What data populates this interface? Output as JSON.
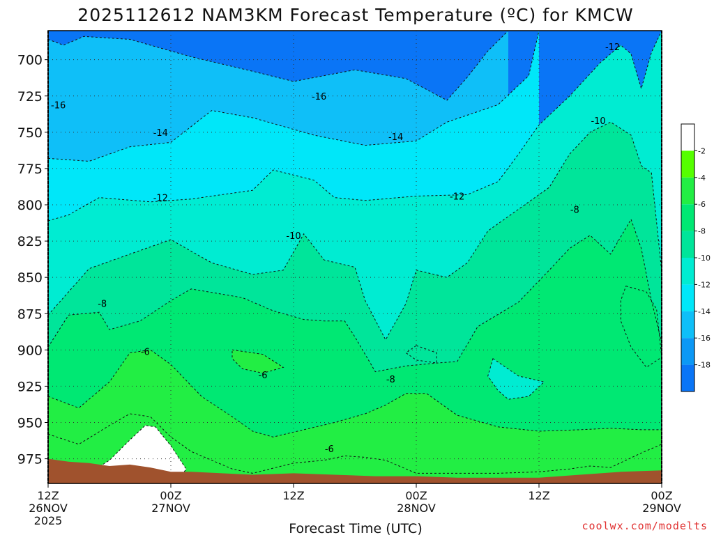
{
  "chart_data": {
    "type": "heatmap",
    "title": "2025112612 NAM3KM Forecast Temperature (ºC) for KMCW",
    "xlabel": "Forecast Time (UTC)",
    "ylabel": "",
    "credit": "coolwx.com/modelts",
    "units": "ºC",
    "x_hours": [
      0,
      12,
      24,
      36,
      48,
      60
    ],
    "x_tick_lines": [
      [
        "12Z",
        "26NOV",
        "2025"
      ],
      [
        "00Z",
        "27NOV"
      ],
      [
        "12Z"
      ],
      [
        "00Z",
        "28NOV"
      ],
      [
        "12Z"
      ],
      [
        "00Z",
        "29NOV"
      ]
    ],
    "xlim": [
      0,
      60
    ],
    "y_levels_hPa": [
      700,
      725,
      750,
      775,
      800,
      825,
      850,
      875,
      900,
      925,
      950,
      975
    ],
    "ylim": [
      680,
      992
    ],
    "colorbar_levels": [
      -2,
      -4,
      -6,
      -8,
      -10,
      -12,
      -14,
      -16,
      -18
    ],
    "colorbar_bands": [
      {
        "range": "> -2",
        "color": "#ffffff"
      },
      {
        "range": "-4 to -2",
        "color": "#55ff00"
      },
      {
        "range": "-6 to -4",
        "color": "#22ee44"
      },
      {
        "range": "-8 to -6",
        "color": "#00e873"
      },
      {
        "range": "-10 to -8",
        "color": "#00e59a"
      },
      {
        "range": "-12 to -10",
        "color": "#00ecd2"
      },
      {
        "range": "-14 to -12",
        "color": "#00e7f9"
      },
      {
        "range": "-16 to -14",
        "color": "#0fbff8"
      },
      {
        "range": "-18 to -16",
        "color": "#0c98f5"
      },
      {
        "range": "< -18",
        "color": "#0a75f6"
      }
    ],
    "contours": [
      {
        "level": -16,
        "points": [
          [
            0,
            686
          ],
          [
            1.5,
            690
          ],
          [
            3.5,
            684
          ],
          [
            8,
            686
          ],
          [
            14,
            698
          ],
          [
            20,
            708
          ],
          [
            24,
            715
          ],
          [
            30,
            707
          ],
          [
            35,
            713
          ],
          [
            39,
            728
          ],
          [
            41,
            712
          ],
          [
            43,
            694
          ],
          [
            45,
            680
          ]
        ]
      },
      {
        "level": -14,
        "points": [
          [
            0,
            768
          ],
          [
            4,
            770
          ],
          [
            8,
            760
          ],
          [
            12,
            757
          ],
          [
            16,
            735
          ],
          [
            20,
            740
          ],
          [
            26,
            752
          ],
          [
            31,
            759
          ],
          [
            36,
            756
          ],
          [
            39,
            743
          ],
          [
            44,
            731
          ],
          [
            47,
            711
          ],
          [
            48,
            680
          ]
        ]
      },
      {
        "level": -12,
        "points": [
          [
            0,
            811
          ],
          [
            2,
            807
          ],
          [
            5,
            795
          ],
          [
            10,
            798
          ],
          [
            14,
            796
          ],
          [
            20,
            790
          ],
          [
            22,
            776
          ],
          [
            26,
            783
          ],
          [
            28,
            795
          ],
          [
            31,
            797
          ],
          [
            36,
            794
          ],
          [
            41,
            793
          ],
          [
            44,
            784
          ],
          [
            46,
            765
          ],
          [
            48,
            745
          ],
          [
            51,
            725
          ],
          [
            54,
            702
          ],
          [
            56,
            690
          ],
          [
            57,
            696
          ],
          [
            58,
            720
          ],
          [
            59,
            695
          ],
          [
            60,
            680
          ]
        ]
      },
      {
        "level": -10,
        "points": [
          [
            0,
            876
          ],
          [
            2,
            860
          ],
          [
            4,
            844
          ],
          [
            8,
            834
          ],
          [
            12,
            824
          ],
          [
            16,
            840
          ],
          [
            20,
            848
          ],
          [
            23,
            845
          ],
          [
            25,
            820
          ],
          [
            27,
            838
          ],
          [
            30,
            843
          ],
          [
            31,
            866
          ],
          [
            33,
            893
          ],
          [
            35,
            868
          ],
          [
            36,
            845
          ],
          [
            39,
            850
          ],
          [
            41,
            840
          ],
          [
            43,
            818
          ],
          [
            46,
            803
          ],
          [
            49,
            788
          ],
          [
            51,
            765
          ],
          [
            53,
            750
          ],
          [
            55,
            743
          ],
          [
            57,
            752
          ],
          [
            58,
            773
          ],
          [
            59,
            778
          ],
          [
            60,
            846
          ]
        ]
      },
      {
        "level": -8,
        "points": [
          [
            0,
            898
          ],
          [
            2,
            876
          ],
          [
            5,
            874
          ],
          [
            6,
            886
          ],
          [
            9,
            880
          ],
          [
            12,
            866
          ],
          [
            14,
            858
          ],
          [
            19,
            864
          ],
          [
            22,
            873
          ],
          [
            25,
            879
          ],
          [
            27,
            880
          ],
          [
            29,
            880
          ],
          [
            30,
            891
          ],
          [
            31,
            903
          ],
          [
            32,
            915
          ],
          [
            35,
            911
          ],
          [
            38,
            909
          ],
          [
            40,
            908
          ],
          [
            42,
            884
          ],
          [
            46,
            867
          ],
          [
            49,
            845
          ],
          [
            51,
            830
          ],
          [
            53,
            821
          ],
          [
            55,
            834
          ],
          [
            57,
            810
          ],
          [
            58,
            830
          ],
          [
            59,
            866
          ],
          [
            60,
            895
          ]
        ]
      },
      {
        "level": -6,
        "points": [
          [
            0,
            932
          ],
          [
            3,
            940
          ],
          [
            6,
            922
          ],
          [
            8,
            902
          ],
          [
            10,
            900
          ],
          [
            12,
            910
          ],
          [
            15,
            932
          ],
          [
            18,
            946
          ],
          [
            20,
            956
          ],
          [
            22,
            960
          ],
          [
            25,
            955
          ],
          [
            28,
            950
          ],
          [
            31,
            944
          ],
          [
            33,
            938
          ],
          [
            35,
            930
          ],
          [
            37,
            930
          ],
          [
            40,
            945
          ],
          [
            44,
            953
          ],
          [
            48,
            956
          ],
          [
            52,
            955
          ],
          [
            55,
            954
          ],
          [
            58,
            955
          ],
          [
            60,
            955
          ]
        ]
      },
      {
        "level": -4,
        "points": [
          [
            0,
            958
          ],
          [
            3,
            965
          ],
          [
            6,
            952
          ],
          [
            8,
            944
          ],
          [
            10,
            946
          ],
          [
            12,
            960
          ],
          [
            14,
            970
          ],
          [
            16,
            976
          ],
          [
            18,
            982
          ],
          [
            20,
            985
          ],
          [
            24,
            978
          ],
          [
            27,
            976
          ],
          [
            29,
            973
          ],
          [
            31,
            974
          ],
          [
            32,
            975
          ],
          [
            33,
            976
          ],
          [
            36,
            985
          ],
          [
            40,
            985
          ],
          [
            44,
            985
          ],
          [
            48,
            984
          ],
          [
            51,
            982
          ],
          [
            53,
            980
          ],
          [
            55,
            981
          ],
          [
            58,
            971
          ],
          [
            60,
            965
          ]
        ]
      }
    ],
    "contour_labels": [
      {
        "text": "-16",
        "t": 1.0,
        "p": 731
      },
      {
        "text": "-16",
        "t": 26.5,
        "p": 725
      },
      {
        "text": "-12",
        "t": 55.2,
        "p": 691
      },
      {
        "text": "-14",
        "t": 11.0,
        "p": 750
      },
      {
        "text": "-14",
        "t": 34.0,
        "p": 753
      },
      {
        "text": "-10",
        "t": 53.8,
        "p": 742
      },
      {
        "text": "-12",
        "t": 11.0,
        "p": 795
      },
      {
        "text": "-12",
        "t": 40.0,
        "p": 794
      },
      {
        "text": "-10",
        "t": 24.0,
        "p": 821
      },
      {
        "text": "-8",
        "t": 51.5,
        "p": 803
      },
      {
        "text": "-8",
        "t": 5.3,
        "p": 868
      },
      {
        "text": "-6",
        "t": 9.5,
        "p": 901
      },
      {
        "text": "-6",
        "t": 21.0,
        "p": 917
      },
      {
        "text": "-8",
        "t": 33.5,
        "p": 920
      },
      {
        "text": "-6",
        "t": 27.5,
        "p": 968
      }
    ],
    "islands": [
      {
        "fill": "#22ee44",
        "points": [
          [
            18,
            900
          ],
          [
            21,
            903
          ],
          [
            23,
            912
          ],
          [
            21,
            916
          ],
          [
            19,
            913
          ],
          [
            18,
            906
          ]
        ]
      },
      {
        "fill": "#00e59a",
        "points": [
          [
            36,
            897
          ],
          [
            38,
            902
          ],
          [
            38,
            909
          ],
          [
            36,
            907
          ],
          [
            35,
            902
          ]
        ]
      },
      {
        "fill": "#00ecd2",
        "points": [
          [
            43.5,
            906
          ],
          [
            46,
            918
          ],
          [
            48.5,
            922
          ],
          [
            47,
            932
          ],
          [
            45,
            934
          ],
          [
            44,
            928
          ],
          [
            43,
            918
          ]
        ]
      },
      {
        "fill": "#00e873",
        "points": [
          [
            56.5,
            856
          ],
          [
            58.5,
            860
          ],
          [
            59.5,
            872
          ],
          [
            60,
            905
          ],
          [
            58.5,
            912
          ],
          [
            57,
            898
          ],
          [
            56,
            880
          ],
          [
            56,
            866
          ]
        ]
      }
    ],
    "warm_pocket": {
      "fill": "#ffffff",
      "points": [
        [
          4,
          985
        ],
        [
          6,
          976
        ],
        [
          8,
          962
        ],
        [
          9.5,
          952
        ],
        [
          10.5,
          953
        ],
        [
          12,
          966
        ],
        [
          13.5,
          982
        ],
        [
          13,
          987
        ],
        [
          9,
          985
        ],
        [
          6,
          988
        ]
      ]
    },
    "ground_fill": "#a0522d",
    "ground_top_hPa": [
      [
        0,
        975
      ],
      [
        2,
        977
      ],
      [
        4,
        978
      ],
      [
        6,
        980
      ],
      [
        8,
        979
      ],
      [
        10,
        981
      ],
      [
        12,
        984
      ],
      [
        14,
        984
      ],
      [
        17,
        985
      ],
      [
        20,
        986
      ],
      [
        24,
        985
      ],
      [
        28,
        986
      ],
      [
        32,
        987
      ],
      [
        36,
        987
      ],
      [
        40,
        988
      ],
      [
        44,
        988
      ],
      [
        48,
        988
      ],
      [
        52,
        986
      ],
      [
        56,
        984
      ],
      [
        60,
        983
      ]
    ]
  }
}
